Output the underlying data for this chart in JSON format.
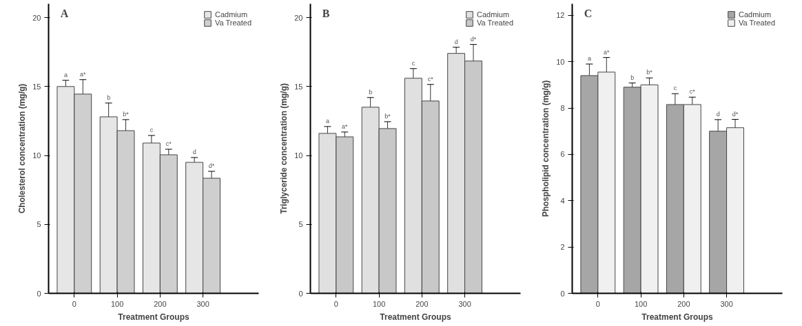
{
  "chart_data": [
    {
      "type": "bar",
      "title": "A",
      "xlabel": "Treatment Groups",
      "ylabel": "Cholesterol concentration (mg/g)",
      "categories": [
        "0",
        "100",
        "200",
        "300"
      ],
      "ylim": [
        0,
        21
      ],
      "yticks": [
        0,
        5,
        10,
        15,
        20
      ],
      "legend": "top right",
      "series": [
        {
          "name": "Cadmium",
          "color": "#e6e6e6",
          "values": [
            15.0,
            12.8,
            10.9,
            9.5
          ],
          "errors": [
            0.45,
            1.0,
            0.55,
            0.35
          ],
          "value_labels": [
            "a",
            "b",
            "c",
            "d"
          ]
        },
        {
          "name": "Va Treated",
          "color": "#cfcfcf",
          "values": [
            14.45,
            11.8,
            10.05,
            8.35
          ],
          "errors": [
            1.05,
            0.8,
            0.4,
            0.5
          ],
          "value_labels": [
            "a*",
            "b*",
            "c*",
            "d*"
          ]
        }
      ]
    },
    {
      "type": "bar",
      "title": "B",
      "xlabel": "Treatment Groups",
      "ylabel": "Triglyceride concentration (mg/g)",
      "categories": [
        "0",
        "100",
        "200",
        "300"
      ],
      "ylim": [
        0,
        21
      ],
      "yticks": [
        0,
        5,
        10,
        15,
        20
      ],
      "legend": "top right",
      "series": [
        {
          "name": "Cadmium",
          "color": "#e0e0e0",
          "values": [
            11.6,
            13.5,
            15.6,
            17.4
          ],
          "errors": [
            0.5,
            0.7,
            0.7,
            0.45
          ],
          "value_labels": [
            "a",
            "b",
            "c",
            "d"
          ]
        },
        {
          "name": "Va Treated",
          "color": "#c8c8c8",
          "values": [
            11.35,
            11.95,
            13.95,
            16.85
          ],
          "errors": [
            0.35,
            0.5,
            1.2,
            1.2
          ],
          "value_labels": [
            "a*",
            "b*",
            "c*",
            "d*"
          ]
        }
      ]
    },
    {
      "type": "bar",
      "title": "C",
      "xlabel": "Treatment Groups",
      "ylabel": "Phospholipid concentration (mg/g)",
      "categories": [
        "0",
        "100",
        "200",
        "300"
      ],
      "ylim": [
        0,
        12.5
      ],
      "yticks": [
        0,
        2,
        4,
        6,
        8,
        10,
        12
      ],
      "legend": "top right",
      "series": [
        {
          "name": "Cadmium",
          "color": "#a6a6a6",
          "values": [
            9.4,
            8.9,
            8.15,
            7.0
          ],
          "errors": [
            0.5,
            0.18,
            0.47,
            0.5
          ],
          "value_labels": [
            "a",
            "b",
            "c",
            "d"
          ]
        },
        {
          "name": "Va Treated",
          "color": "#f0f0f0",
          "values": [
            9.55,
            9.0,
            8.15,
            7.15
          ],
          "errors": [
            0.63,
            0.3,
            0.32,
            0.36
          ],
          "value_labels": [
            "a*",
            "b*",
            "c*",
            "d*"
          ]
        }
      ]
    }
  ]
}
